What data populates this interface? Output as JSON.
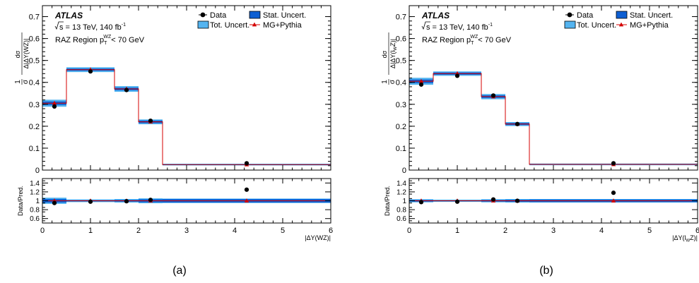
{
  "colors": {
    "stat_uncert": "#0e5fd2",
    "tot_uncert": "#54b4f0",
    "data_marker": "#000000",
    "prediction": "#d40000"
  },
  "legend": {
    "data": "Data",
    "stat": "Stat. Uncert.",
    "tot": "Tot. Uncert.",
    "mc": "MG+Pythia"
  },
  "labels": {
    "atlas": "ATLAS",
    "energy_prefix": "s",
    "energy_text": " = 13 TeV, 140 fb",
    "energy_sup": "-1",
    "region_prefix": "RAZ Region p",
    "region_sub": "T",
    "region_sup": "WZ",
    "region_suffix": "< 70 GeV",
    "ratio_ylabel": "Data/Pred."
  },
  "panels": [
    {
      "caption": "(a)",
      "ylabel_prefix": "|ΔY(WZ)|",
      "xlabel": "|ΔY(WZ)|"
    },
    {
      "caption": "(b)",
      "ylabel_prefix": "|ΔY(l",
      "ylabel_sub": "W",
      "ylabel_suffix": "Z)|",
      "xlabel_main": "|ΔY(l",
      "xlabel_sub": "W",
      "xlabel_suffix": "Z)|"
    }
  ],
  "chart_data": [
    {
      "type": "histogram",
      "x_range": [
        0,
        6
      ],
      "bins": [
        [
          0,
          0.5
        ],
        [
          0.5,
          1.5
        ],
        [
          1.5,
          2.0
        ],
        [
          2.0,
          2.5
        ],
        [
          2.5,
          6.0
        ]
      ],
      "x_centers": [
        0.25,
        1.0,
        1.75,
        2.25,
        4.25
      ],
      "main": {
        "ylim": [
          0,
          0.75
        ],
        "yticks": [
          0,
          0.1,
          0.2,
          0.3,
          0.4,
          0.5,
          0.6,
          0.7
        ],
        "data": [
          0.29,
          0.45,
          0.365,
          0.225,
          0.031
        ],
        "prediction": [
          0.305,
          0.458,
          0.37,
          0.22,
          0.025
        ],
        "stat_uncert": [
          0.008,
          0.005,
          0.006,
          0.006,
          0.002
        ],
        "tot_uncert": [
          0.016,
          0.011,
          0.013,
          0.011,
          0.004
        ]
      },
      "ratio": {
        "ylim": [
          0.5,
          1.5
        ],
        "yticks": [
          0.6,
          0.8,
          1.0,
          1.2,
          1.4
        ],
        "data": [
          0.95,
          0.98,
          0.99,
          1.02,
          1.25
        ],
        "prediction": [
          1.0,
          1.0,
          1.0,
          1.0,
          1.0
        ],
        "stat_uncert": [
          0.04,
          0.015,
          0.02,
          0.035,
          0.04
        ],
        "tot_uncert": [
          0.07,
          0.03,
          0.04,
          0.055,
          0.05
        ]
      }
    },
    {
      "type": "histogram",
      "x_range": [
        0,
        6
      ],
      "bins": [
        [
          0,
          0.5
        ],
        [
          0.5,
          1.5
        ],
        [
          1.5,
          2.0
        ],
        [
          2.0,
          2.5
        ],
        [
          2.5,
          6.0
        ]
      ],
      "x_centers": [
        0.25,
        1.0,
        1.75,
        2.25,
        4.25
      ],
      "main": {
        "ylim": [
          0,
          0.75
        ],
        "yticks": [
          0,
          0.1,
          0.2,
          0.3,
          0.4,
          0.5,
          0.6,
          0.7
        ],
        "data": [
          0.39,
          0.43,
          0.34,
          0.21,
          0.031
        ],
        "prediction": [
          0.405,
          0.44,
          0.335,
          0.21,
          0.026
        ],
        "stat_uncert": [
          0.008,
          0.005,
          0.006,
          0.005,
          0.002
        ],
        "tot_uncert": [
          0.016,
          0.01,
          0.012,
          0.009,
          0.004
        ]
      },
      "ratio": {
        "ylim": [
          0.5,
          1.5
        ],
        "yticks": [
          0.6,
          0.8,
          1.0,
          1.2,
          1.4
        ],
        "data": [
          0.97,
          0.98,
          1.03,
          1.0,
          1.18
        ],
        "prediction": [
          1.0,
          1.0,
          1.0,
          1.0,
          1.0
        ],
        "stat_uncert": [
          0.02,
          0.012,
          0.02,
          0.025,
          0.03
        ],
        "tot_uncert": [
          0.035,
          0.025,
          0.035,
          0.04,
          0.04
        ]
      }
    }
  ]
}
